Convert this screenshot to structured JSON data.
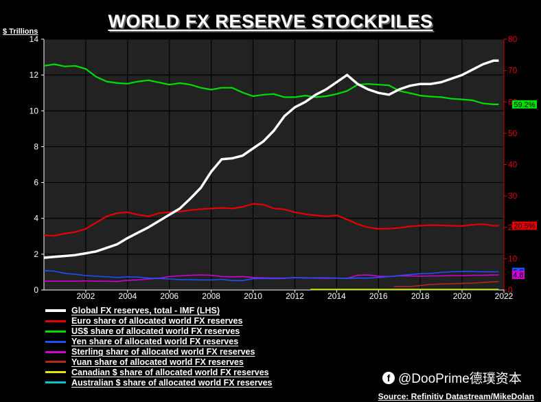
{
  "title": "WORLD FX RESERVE STOCKPILES",
  "left_axis_unit": "$ Trillions",
  "source": "Source: Refinitiv Datastream/MikeDolan",
  "watermark": {
    "icon": "facebook-icon",
    "text": "@DooPrime德璞资本"
  },
  "colors": {
    "background": "#000000",
    "plot_bg": "#222222",
    "left_axis": "#ffffff",
    "right_axis": "#e00000"
  },
  "chart_data": {
    "type": "line",
    "title": "WORLD FX RESERVE STOCKPILES",
    "x_ticks": [
      2002,
      2004,
      2006,
      2008,
      2010,
      2012,
      2014,
      2016,
      2018,
      2020,
      2022
    ],
    "xlim": [
      2000.0,
      2022.0
    ],
    "y_left": {
      "label": "$ Trillions",
      "ylim": [
        0,
        14
      ],
      "ticks": [
        0,
        2,
        4,
        6,
        8,
        10,
        12,
        14
      ]
    },
    "y_right": {
      "ylim": [
        0,
        80
      ],
      "ticks": [
        0,
        10,
        20,
        30,
        40,
        50,
        60,
        70,
        80
      ]
    },
    "grid": true,
    "legend_placement": "bottom",
    "series": [
      {
        "name": "Global FX reserves, total - IMF (LHS)",
        "axis": "left",
        "color": "#ffffff",
        "width": 3.5,
        "points": [
          [
            2000.0,
            1.8
          ],
          [
            2000.5,
            1.85
          ],
          [
            2001.0,
            1.9
          ],
          [
            2001.5,
            1.95
          ],
          [
            2002.0,
            2.05
          ],
          [
            2002.5,
            2.15
          ],
          [
            2003.0,
            2.35
          ],
          [
            2003.5,
            2.55
          ],
          [
            2004.0,
            2.9
          ],
          [
            2004.5,
            3.2
          ],
          [
            2005.0,
            3.5
          ],
          [
            2005.5,
            3.85
          ],
          [
            2006.0,
            4.2
          ],
          [
            2006.5,
            4.55
          ],
          [
            2007.0,
            5.1
          ],
          [
            2007.5,
            5.7
          ],
          [
            2008.0,
            6.6
          ],
          [
            2008.5,
            7.3
          ],
          [
            2009.0,
            7.35
          ],
          [
            2009.5,
            7.5
          ],
          [
            2010.0,
            7.9
          ],
          [
            2010.5,
            8.3
          ],
          [
            2011.0,
            8.9
          ],
          [
            2011.5,
            9.7
          ],
          [
            2012.0,
            10.2
          ],
          [
            2012.5,
            10.5
          ],
          [
            2013.0,
            10.9
          ],
          [
            2013.5,
            11.2
          ],
          [
            2014.0,
            11.6
          ],
          [
            2014.5,
            12.0
          ],
          [
            2015.0,
            11.5
          ],
          [
            2015.5,
            11.2
          ],
          [
            2016.0,
            11.0
          ],
          [
            2016.5,
            10.9
          ],
          [
            2017.0,
            11.2
          ],
          [
            2017.5,
            11.4
          ],
          [
            2018.0,
            11.5
          ],
          [
            2018.5,
            11.5
          ],
          [
            2019.0,
            11.6
          ],
          [
            2019.5,
            11.8
          ],
          [
            2020.0,
            12.0
          ],
          [
            2020.5,
            12.3
          ],
          [
            2021.0,
            12.6
          ],
          [
            2021.5,
            12.8
          ],
          [
            2021.75,
            12.8
          ]
        ]
      },
      {
        "name": "Euro share of allocated world FX reserves",
        "axis": "right",
        "color": "#e60000",
        "width": 2.2,
        "points": [
          [
            2000.0,
            17.5
          ],
          [
            2000.5,
            17.3
          ],
          [
            2001.0,
            18.0
          ],
          [
            2001.5,
            18.5
          ],
          [
            2002.0,
            19.5
          ],
          [
            2002.5,
            21.5
          ],
          [
            2003.0,
            23.5
          ],
          [
            2003.5,
            24.5
          ],
          [
            2004.0,
            24.8
          ],
          [
            2004.5,
            24.0
          ],
          [
            2005.0,
            23.5
          ],
          [
            2005.5,
            24.5
          ],
          [
            2006.0,
            24.8
          ],
          [
            2006.5,
            25.0
          ],
          [
            2007.0,
            25.5
          ],
          [
            2007.5,
            25.8
          ],
          [
            2008.0,
            26.0
          ],
          [
            2008.5,
            26.2
          ],
          [
            2009.0,
            26.0
          ],
          [
            2009.5,
            26.5
          ],
          [
            2010.0,
            27.5
          ],
          [
            2010.5,
            27.2
          ],
          [
            2011.0,
            26.0
          ],
          [
            2011.5,
            25.7
          ],
          [
            2012.0,
            24.8
          ],
          [
            2012.5,
            24.2
          ],
          [
            2013.0,
            23.8
          ],
          [
            2013.5,
            23.5
          ],
          [
            2014.0,
            23.8
          ],
          [
            2014.5,
            22.5
          ],
          [
            2015.0,
            21.0
          ],
          [
            2015.5,
            20.0
          ],
          [
            2016.0,
            19.5
          ],
          [
            2016.5,
            19.6
          ],
          [
            2017.0,
            19.8
          ],
          [
            2017.5,
            20.3
          ],
          [
            2018.0,
            20.5
          ],
          [
            2018.5,
            20.7
          ],
          [
            2019.0,
            20.6
          ],
          [
            2019.5,
            20.5
          ],
          [
            2020.0,
            20.4
          ],
          [
            2020.5,
            20.8
          ],
          [
            2021.0,
            21.0
          ],
          [
            2021.5,
            20.5
          ],
          [
            2021.75,
            20.5
          ]
        ]
      },
      {
        "name": "US$ share of allocated world FX reserves",
        "axis": "right",
        "color": "#00e000",
        "width": 2.2,
        "points": [
          [
            2000.0,
            71.5
          ],
          [
            2000.5,
            72.0
          ],
          [
            2001.0,
            71.3
          ],
          [
            2001.5,
            71.5
          ],
          [
            2002.0,
            70.5
          ],
          [
            2002.5,
            68.0
          ],
          [
            2003.0,
            66.5
          ],
          [
            2003.5,
            66.0
          ],
          [
            2004.0,
            65.8
          ],
          [
            2004.5,
            66.5
          ],
          [
            2005.0,
            66.9
          ],
          [
            2005.5,
            66.2
          ],
          [
            2006.0,
            65.5
          ],
          [
            2006.5,
            66.0
          ],
          [
            2007.0,
            65.5
          ],
          [
            2007.5,
            64.5
          ],
          [
            2008.0,
            63.9
          ],
          [
            2008.5,
            64.5
          ],
          [
            2009.0,
            64.5
          ],
          [
            2009.5,
            63.0
          ],
          [
            2010.0,
            61.8
          ],
          [
            2010.5,
            62.3
          ],
          [
            2011.0,
            62.5
          ],
          [
            2011.5,
            61.5
          ],
          [
            2012.0,
            61.5
          ],
          [
            2012.5,
            62.0
          ],
          [
            2013.0,
            61.5
          ],
          [
            2013.5,
            61.8
          ],
          [
            2014.0,
            62.5
          ],
          [
            2014.5,
            63.5
          ],
          [
            2015.0,
            65.5
          ],
          [
            2015.5,
            65.7
          ],
          [
            2016.0,
            65.5
          ],
          [
            2016.5,
            65.3
          ],
          [
            2017.0,
            63.5
          ],
          [
            2017.5,
            62.8
          ],
          [
            2018.0,
            62.0
          ],
          [
            2018.5,
            61.7
          ],
          [
            2019.0,
            61.5
          ],
          [
            2019.5,
            61.0
          ],
          [
            2020.0,
            60.8
          ],
          [
            2020.5,
            60.5
          ],
          [
            2021.0,
            59.5
          ],
          [
            2021.5,
            59.2
          ],
          [
            2021.75,
            59.2
          ]
        ]
      },
      {
        "name": "Yen share of allocated world FX reserves",
        "axis": "right",
        "color": "#1e50ff",
        "width": 1.6,
        "points": [
          [
            2000.0,
            6.2
          ],
          [
            2000.5,
            6.0
          ],
          [
            2001.0,
            5.3
          ],
          [
            2001.5,
            5.0
          ],
          [
            2002.0,
            4.6
          ],
          [
            2002.5,
            4.4
          ],
          [
            2003.0,
            4.2
          ],
          [
            2003.5,
            4.0
          ],
          [
            2004.0,
            4.2
          ],
          [
            2004.5,
            4.1
          ],
          [
            2005.0,
            3.8
          ],
          [
            2005.5,
            3.7
          ],
          [
            2006.0,
            3.5
          ],
          [
            2006.5,
            3.3
          ],
          [
            2007.0,
            3.3
          ],
          [
            2007.5,
            3.2
          ],
          [
            2008.0,
            3.2
          ],
          [
            2008.5,
            3.4
          ],
          [
            2009.0,
            3.0
          ],
          [
            2009.5,
            3.0
          ],
          [
            2010.0,
            3.6
          ],
          [
            2010.5,
            3.7
          ],
          [
            2011.0,
            3.6
          ],
          [
            2011.5,
            3.7
          ],
          [
            2012.0,
            4.0
          ],
          [
            2012.5,
            3.8
          ],
          [
            2013.0,
            3.9
          ],
          [
            2013.5,
            3.9
          ],
          [
            2014.0,
            3.8
          ],
          [
            2014.5,
            3.7
          ],
          [
            2015.0,
            3.8
          ],
          [
            2015.5,
            3.8
          ],
          [
            2016.0,
            4.0
          ],
          [
            2016.5,
            4.3
          ],
          [
            2017.0,
            4.6
          ],
          [
            2017.5,
            4.9
          ],
          [
            2018.0,
            5.2
          ],
          [
            2018.5,
            5.3
          ],
          [
            2019.0,
            5.6
          ],
          [
            2019.5,
            5.8
          ],
          [
            2020.0,
            5.9
          ],
          [
            2020.5,
            5.9
          ],
          [
            2021.0,
            5.8
          ],
          [
            2021.5,
            5.8
          ],
          [
            2021.75,
            5.8
          ]
        ]
      },
      {
        "name": "Sterling share of allocated world FX reserves",
        "axis": "right",
        "color": "#d200d2",
        "width": 1.6,
        "points": [
          [
            2000.0,
            2.8
          ],
          [
            2000.5,
            2.8
          ],
          [
            2001.0,
            2.8
          ],
          [
            2001.5,
            2.8
          ],
          [
            2002.0,
            2.9
          ],
          [
            2002.5,
            2.8
          ],
          [
            2003.0,
            2.8
          ],
          [
            2003.5,
            2.7
          ],
          [
            2004.0,
            3.1
          ],
          [
            2004.5,
            3.2
          ],
          [
            2005.0,
            3.5
          ],
          [
            2005.5,
            3.7
          ],
          [
            2006.0,
            4.3
          ],
          [
            2006.5,
            4.5
          ],
          [
            2007.0,
            4.7
          ],
          [
            2007.5,
            4.8
          ],
          [
            2008.0,
            4.7
          ],
          [
            2008.5,
            4.3
          ],
          [
            2009.0,
            4.2
          ],
          [
            2009.5,
            4.3
          ],
          [
            2010.0,
            4.0
          ],
          [
            2010.5,
            3.9
          ],
          [
            2011.0,
            3.8
          ],
          [
            2011.5,
            3.8
          ],
          [
            2012.0,
            3.9
          ],
          [
            2012.5,
            3.9
          ],
          [
            2013.0,
            3.8
          ],
          [
            2013.5,
            3.7
          ],
          [
            2014.0,
            3.8
          ],
          [
            2014.5,
            3.7
          ],
          [
            2015.0,
            4.7
          ],
          [
            2015.5,
            4.8
          ],
          [
            2016.0,
            4.4
          ],
          [
            2016.5,
            4.3
          ],
          [
            2017.0,
            4.5
          ],
          [
            2017.5,
            4.5
          ],
          [
            2018.0,
            4.4
          ],
          [
            2018.5,
            4.5
          ],
          [
            2019.0,
            4.5
          ],
          [
            2019.5,
            4.6
          ],
          [
            2020.0,
            4.6
          ],
          [
            2020.5,
            4.7
          ],
          [
            2021.0,
            4.7
          ],
          [
            2021.5,
            4.8
          ],
          [
            2021.75,
            4.8
          ]
        ]
      },
      {
        "name": "Yuan share of allocated world FX reserves",
        "axis": "right",
        "color": "#b02a1a",
        "width": 1.6,
        "points": [
          [
            2016.75,
            1.1
          ],
          [
            2017.5,
            1.1
          ],
          [
            2018.0,
            1.4
          ],
          [
            2018.5,
            1.8
          ],
          [
            2019.0,
            1.9
          ],
          [
            2019.5,
            2.0
          ],
          [
            2020.0,
            2.1
          ],
          [
            2020.5,
            2.2
          ],
          [
            2021.0,
            2.4
          ],
          [
            2021.5,
            2.6
          ],
          [
            2021.75,
            2.7
          ]
        ]
      },
      {
        "name": "Canadian $ share of allocated world FX reserves",
        "axis": "right",
        "color": "#e6e600",
        "width": 1.6,
        "points": [
          [
            2012.75,
            0.2
          ],
          [
            2021.75,
            0.2
          ]
        ]
      },
      {
        "name": "Australian $ share of allocated world FX reserves",
        "axis": "right",
        "color": "#00c8c8",
        "width": 1.6,
        "points": [
          [
            2012.75,
            0.1
          ],
          [
            2021.75,
            0.1
          ]
        ]
      }
    ],
    "end_labels": [
      {
        "text": "59.2%",
        "value": 59.2,
        "axis": "right",
        "bg": "#00e000",
        "fg": "#000000"
      },
      {
        "text": "20.5%",
        "value": 20.5,
        "axis": "right",
        "bg": "#e60000",
        "fg": "#000000"
      },
      {
        "text": "5.8",
        "value": 5.8,
        "axis": "right",
        "bg": "#1e50ff",
        "fg": "#000000"
      },
      {
        "text": "4.8",
        "value": 4.8,
        "axis": "right",
        "bg": "#d200d2",
        "fg": "#000000"
      }
    ]
  }
}
